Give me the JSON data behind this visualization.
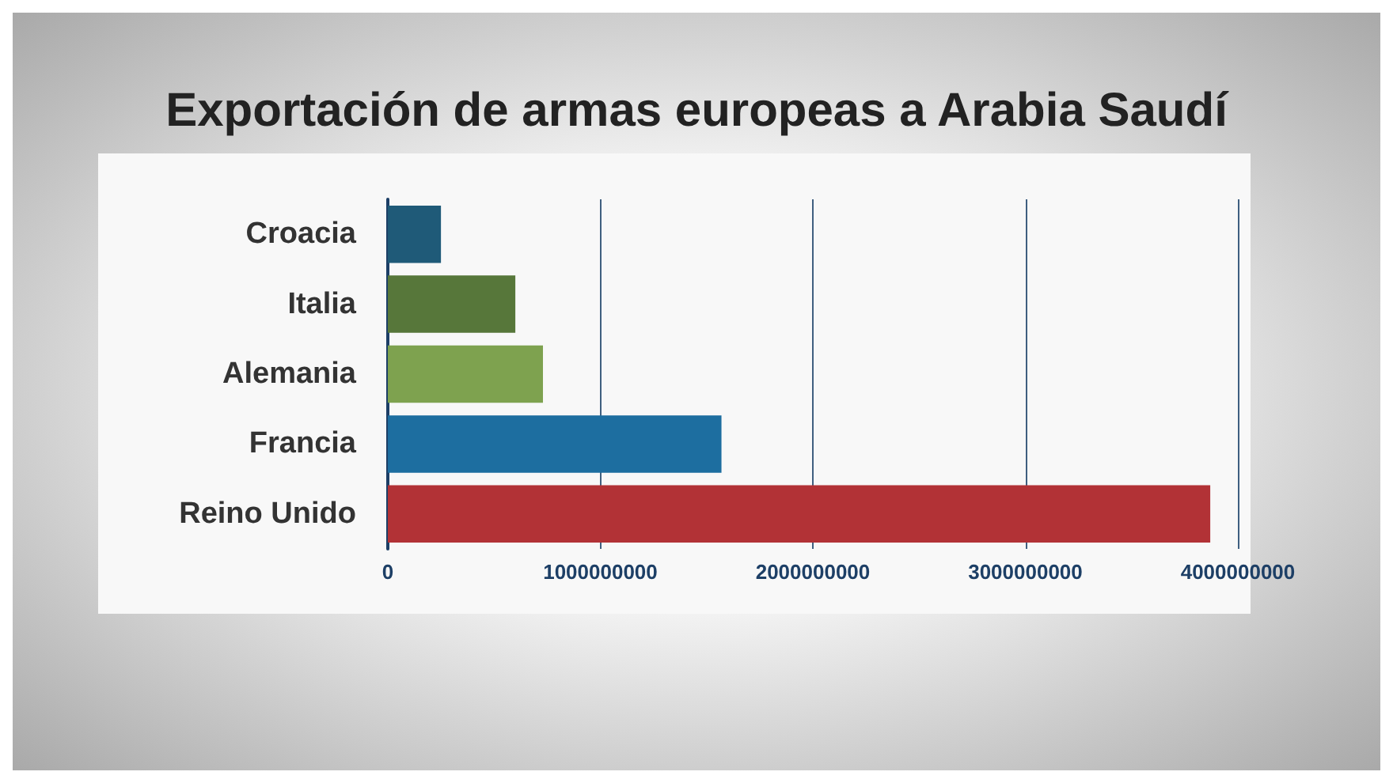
{
  "chart_data": {
    "type": "bar",
    "orientation": "horizontal",
    "title": "Exportación de armas europeas a Arabia Saudí",
    "categories": [
      "Croacia",
      "Italia",
      "Alemania",
      "Francia",
      "Reino Unido"
    ],
    "values": [
      250000000,
      600000000,
      730000000,
      1570000000,
      3870000000
    ],
    "colors": [
      "#1f5a78",
      "#57773a",
      "#7ea24f",
      "#1d6ea0",
      "#b23236"
    ],
    "xlim": [
      0,
      4000000000
    ],
    "xticks": [
      0,
      1000000000,
      2000000000,
      3000000000,
      4000000000
    ],
    "grid": "x"
  }
}
